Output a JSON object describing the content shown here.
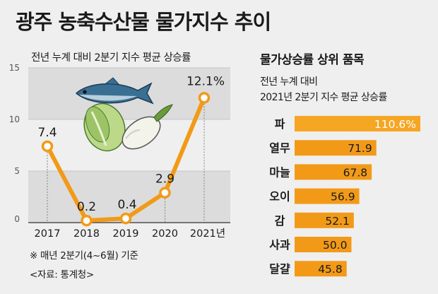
{
  "title": "광주 농축수산물 물가지수 추이",
  "left_chart": {
    "subtitle": "전년 누계 대비 2분기 지수 평균 상승률",
    "note": "※ 매년 2분기(4~6월) 기준",
    "source": "<자료: 통계청>"
  },
  "right_chart": {
    "title": "물가상승률 상위 품목",
    "subtitle_line1": "전년 누계 대비",
    "subtitle_line2": "2021년 2분기 지수 평균 상승률"
  },
  "colors": {
    "accent": "#f29a18",
    "highlight": "#f5a623",
    "band": "#dcdcdc",
    "background": "#efefef"
  },
  "chart_data": [
    {
      "type": "line",
      "title": "전년 누계 대비 2분기 지수 평균 상승률",
      "categories": [
        "2017",
        "2018",
        "2019",
        "2020",
        "2021년"
      ],
      "values": [
        7.4,
        0.2,
        0.4,
        2.9,
        12.1
      ],
      "data_labels": [
        "7.4",
        "0.2",
        "0.4",
        "2.9",
        "12.1%"
      ],
      "yticks": [
        "0",
        "5",
        "10",
        "15"
      ],
      "ylim": [
        0,
        15
      ],
      "grid": "alternating bands"
    },
    {
      "type": "bar",
      "orientation": "horizontal",
      "title": "물가상승률 상위 품목",
      "categories": [
        "파",
        "열무",
        "마늘",
        "오이",
        "감",
        "사과",
        "달걀"
      ],
      "values": [
        110.6,
        71.9,
        67.8,
        56.9,
        52.1,
        50.0,
        45.8
      ],
      "data_labels": [
        "110.6%",
        "71.9",
        "67.8",
        "56.9",
        "52.1",
        "50.0",
        "45.8"
      ]
    }
  ]
}
